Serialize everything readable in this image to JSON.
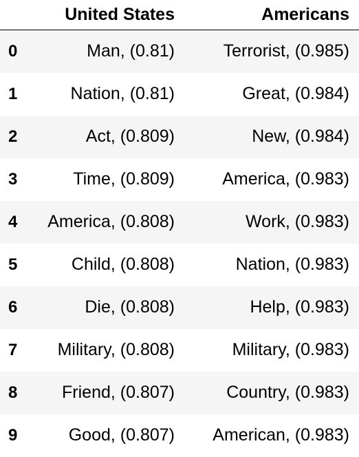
{
  "table": {
    "columns": [
      "United States",
      "Americans"
    ],
    "rows": [
      {
        "index": "0",
        "united_states": "Man, (0.81)",
        "americans": "Terrorist, (0.985)"
      },
      {
        "index": "1",
        "united_states": "Nation, (0.81)",
        "americans": "Great, (0.984)"
      },
      {
        "index": "2",
        "united_states": "Act, (0.809)",
        "americans": "New, (0.984)"
      },
      {
        "index": "3",
        "united_states": "Time, (0.809)",
        "americans": "America, (0.983)"
      },
      {
        "index": "4",
        "united_states": "America, (0.808)",
        "americans": "Work, (0.983)"
      },
      {
        "index": "5",
        "united_states": "Child, (0.808)",
        "americans": "Nation, (0.983)"
      },
      {
        "index": "6",
        "united_states": "Die, (0.808)",
        "americans": "Help, (0.983)"
      },
      {
        "index": "7",
        "united_states": "Military, (0.808)",
        "americans": "Military, (0.983)"
      },
      {
        "index": "8",
        "united_states": "Friend, (0.807)",
        "americans": "Country, (0.983)"
      },
      {
        "index": "9",
        "united_states": "Good, (0.807)",
        "americans": "American, (0.983)"
      }
    ]
  }
}
